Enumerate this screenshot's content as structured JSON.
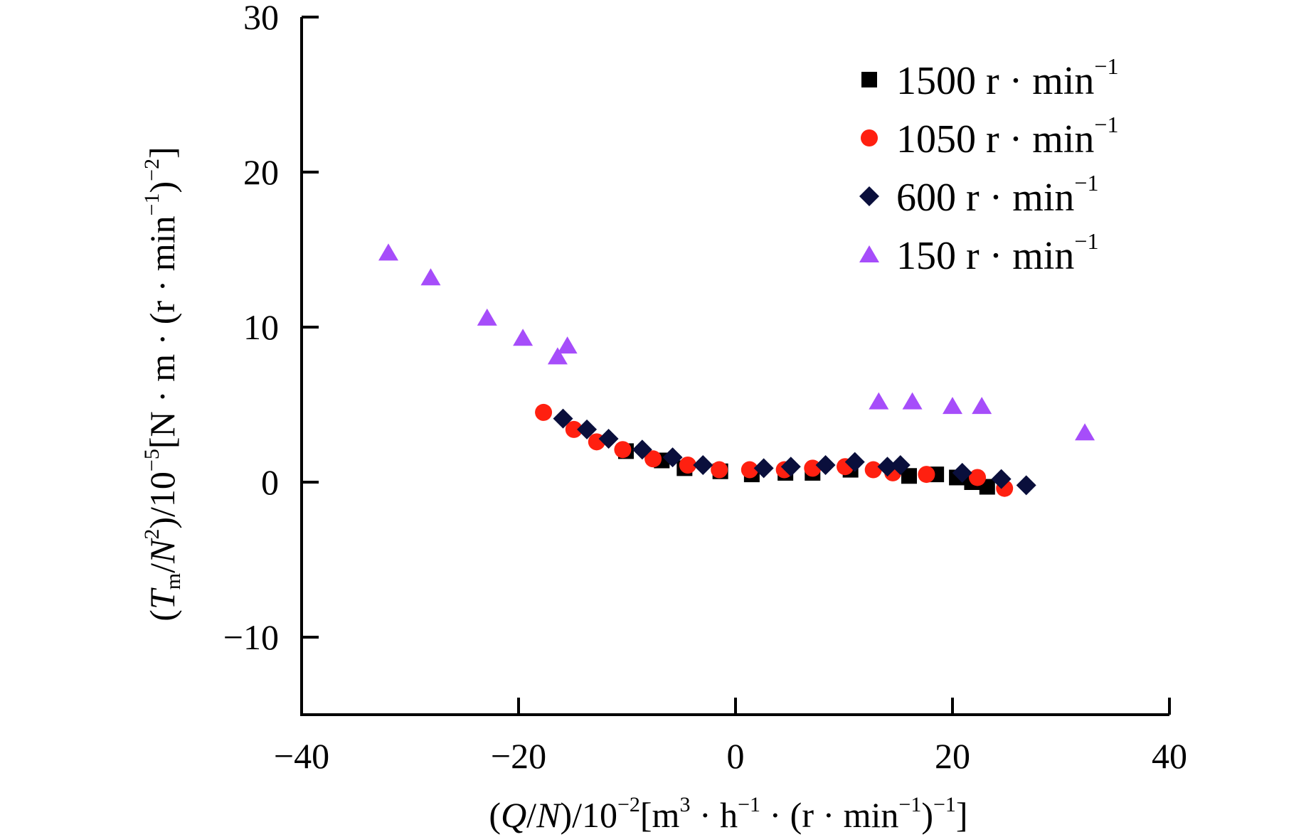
{
  "chart_data": {
    "type": "scatter",
    "title": "",
    "xlabel": {
      "open": "(",
      "q": "Q",
      "slash": "/",
      "n": "N",
      "close_scale": ")/10",
      "scale_exp": "−2",
      "unit_a": "[m",
      "unit_a_exp": "3",
      "unit_b": " · h",
      "unit_b_exp": "−1",
      "unit_c": " · (r · min",
      "unit_c_exp": "−1",
      "unit_d": ")",
      "unit_d_exp": "−1",
      "unit_e": "]"
    },
    "ylabel": {
      "open": "(",
      "t": "T",
      "t_sub": "m",
      "slash": "/",
      "n": "N",
      "n_exp": "2",
      "close_scale": ")/10",
      "scale_exp": "−5",
      "unit_a": "[N · m · (r · min",
      "unit_a_exp": "−1",
      "unit_b": ")",
      "unit_b_exp": "−2",
      "unit_c": "]"
    },
    "xlim": [
      -40,
      40
    ],
    "ylim": [
      -15,
      30
    ],
    "x_ticks": [
      {
        "value": -40,
        "label": "−40"
      },
      {
        "value": -20,
        "label": "−20"
      },
      {
        "value": 0,
        "label": "0"
      },
      {
        "value": 20,
        "label": "20"
      },
      {
        "value": 40,
        "label": "40"
      }
    ],
    "y_ticks": [
      {
        "value": -10,
        "label": "−10"
      },
      {
        "value": 0,
        "label": "0"
      },
      {
        "value": 10,
        "label": "10"
      },
      {
        "value": 20,
        "label": "20"
      },
      {
        "value": 30,
        "label": "30"
      }
    ],
    "grid": false,
    "legend_position": "top-right",
    "series": [
      {
        "name": "1500 r · min",
        "name_exp": "−1",
        "marker": "square",
        "color": "#000000",
        "points": [
          [
            -10.1,
            2.0
          ],
          [
            -6.8,
            1.4
          ],
          [
            -4.7,
            0.9
          ],
          [
            -1.4,
            0.7
          ],
          [
            1.5,
            0.5
          ],
          [
            4.6,
            0.6
          ],
          [
            7.1,
            0.6
          ],
          [
            10.6,
            0.8
          ],
          [
            16.0,
            0.4
          ],
          [
            18.5,
            0.5
          ],
          [
            20.4,
            0.3
          ],
          [
            21.8,
            0.0
          ],
          [
            23.2,
            -0.3
          ]
        ]
      },
      {
        "name": "1050 r · min",
        "name_exp": "−1",
        "marker": "circle",
        "color": "#ff2010",
        "points": [
          [
            -17.7,
            4.5
          ],
          [
            -14.9,
            3.4
          ],
          [
            -12.8,
            2.6
          ],
          [
            -10.4,
            2.1
          ],
          [
            -7.6,
            1.5
          ],
          [
            -4.4,
            1.1
          ],
          [
            -1.5,
            0.8
          ],
          [
            1.3,
            0.8
          ],
          [
            4.5,
            0.8
          ],
          [
            7.1,
            0.9
          ],
          [
            10.1,
            1.0
          ],
          [
            12.7,
            0.8
          ],
          [
            14.5,
            0.6
          ],
          [
            17.6,
            0.5
          ],
          [
            22.3,
            0.3
          ],
          [
            24.8,
            -0.4
          ]
        ]
      },
      {
        "name": "600 r · min",
        "name_exp": "−1",
        "marker": "diamond",
        "color": "#0a0f3c",
        "points": [
          [
            -15.9,
            4.1
          ],
          [
            -13.7,
            3.4
          ],
          [
            -11.7,
            2.8
          ],
          [
            -8.6,
            2.1
          ],
          [
            -5.8,
            1.6
          ],
          [
            -3.0,
            1.1
          ],
          [
            2.6,
            0.9
          ],
          [
            5.1,
            1.0
          ],
          [
            8.3,
            1.1
          ],
          [
            11.0,
            1.3
          ],
          [
            14.0,
            1.0
          ],
          [
            15.2,
            1.1
          ],
          [
            20.9,
            0.6
          ],
          [
            24.5,
            0.2
          ],
          [
            26.8,
            -0.2
          ]
        ]
      },
      {
        "name": "150 r · min",
        "name_exp": "−1",
        "marker": "triangle",
        "color": "#a64dfa",
        "points": [
          [
            -32.0,
            14.8
          ],
          [
            -28.1,
            13.2
          ],
          [
            -22.9,
            10.6
          ],
          [
            -19.6,
            9.3
          ],
          [
            -16.4,
            8.1
          ],
          [
            -15.5,
            8.8
          ],
          [
            13.2,
            5.2
          ],
          [
            16.3,
            5.2
          ],
          [
            20.0,
            4.9
          ],
          [
            22.7,
            4.9
          ],
          [
            32.2,
            3.2
          ]
        ]
      }
    ]
  }
}
